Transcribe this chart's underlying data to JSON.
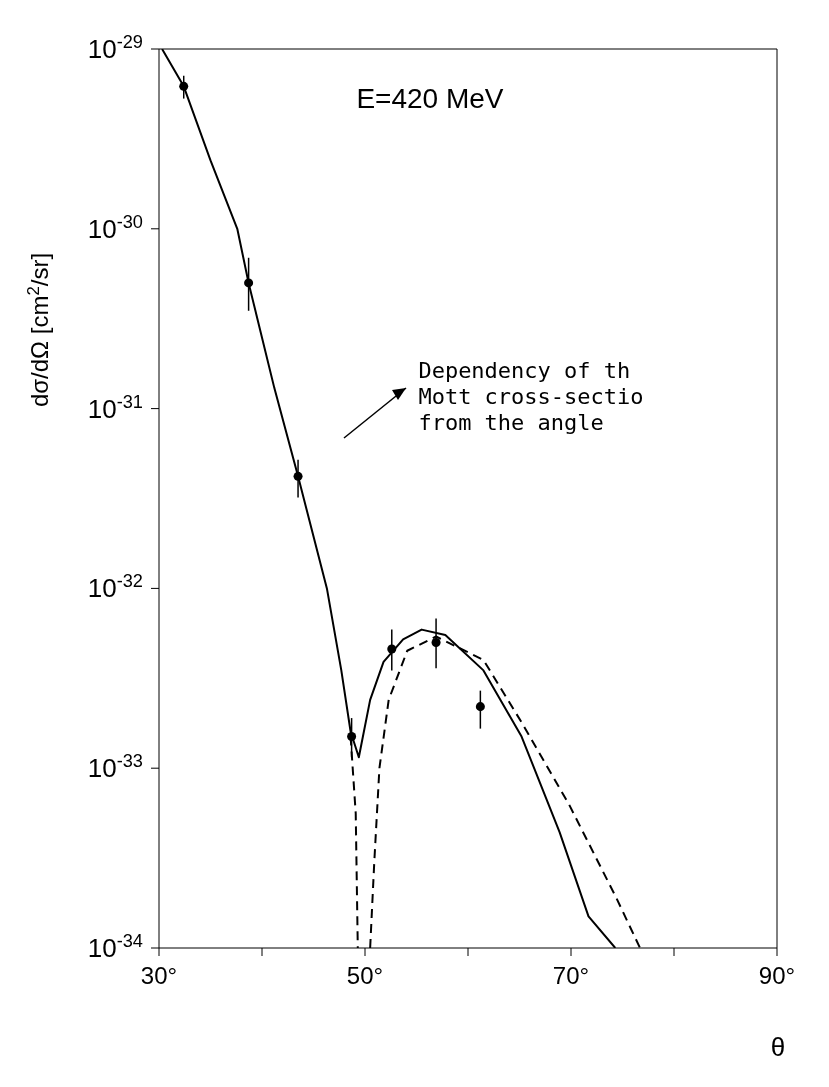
{
  "chart_data": {
    "type": "scatter",
    "log": "y",
    "xlabel": "θ",
    "ylabel": "dσ/dΩ [cm$^{2}$/sr]",
    "xlim": [
      30,
      90
    ],
    "xticks": [
      {
        "value": 30,
        "label": "30°"
      },
      {
        "value": 40,
        "label": null
      },
      {
        "value": 50,
        "label": "50°"
      },
      {
        "value": 60,
        "label": null
      },
      {
        "value": 70,
        "label": "70°"
      },
      {
        "value": 80,
        "label": null
      },
      {
        "value": 90,
        "label": "90°"
      }
    ],
    "ylim": [
      1e-34,
      1e-29
    ],
    "yticks": [
      {
        "value": 1e-34,
        "label": "10$^{-34}$"
      },
      {
        "value": 1e-33,
        "label": "10$^{-33}$"
      },
      {
        "value": 1e-32,
        "label": "10$^{-32}$"
      },
      {
        "value": 1e-31,
        "label": "10$^{-31}$"
      },
      {
        "value": 1e-30,
        "label": "10$^{-30}$"
      },
      {
        "value": 1e-29,
        "label": "10$^{-29}$"
      }
    ],
    "annotations": [
      "E=420 MeV",
      "Dependency of th\nMott cross-sectio\nfrom the angle"
    ],
    "series": [
      {
        "marker": "circle",
        "color": "#000000",
        "x": [
          32.4,
          38.7,
          43.5,
          48.7,
          52.6,
          56.9,
          61.2
        ],
        "values": [
          6.2e-30,
          5e-31,
          4.2e-32,
          1.5e-33,
          4.6e-33,
          5e-33,
          2.2e-33
        ],
        "errors": [
          [
            5.3e-30,
            7.1e-30
          ],
          [
            3.5e-31,
            6.9e-31
          ],
          [
            3.2e-32,
            5.2e-32
          ],
          [
            1.15e-33,
            1.9e-33
          ],
          [
            3.5e-33,
            5.9e-33
          ],
          [
            3.6e-33,
            6.8e-33
          ],
          [
            1.66e-33,
            2.7e-33
          ]
        ]
      },
      {
        "type": "line",
        "marker": "none",
        "line_style": "solid",
        "color": "#000000",
        "x": [
          30.3,
          32.4,
          35,
          37.6,
          38.7,
          41.2,
          43.5,
          46.3,
          47.7,
          48.6,
          49.4,
          50.5,
          51.8,
          53.7,
          55.5,
          57.8,
          61.5,
          65.2,
          68.9,
          71.7,
          74.3
        ],
        "values": [
          1e-29,
          6.2e-30,
          2.4e-30,
          1e-30,
          5e-31,
          1.3e-31,
          4.2e-32,
          1e-32,
          3.5e-33,
          1.6e-33,
          1.15e-33,
          2.4e-33,
          3.9e-33,
          5.2e-33,
          5.9e-33,
          5.5e-33,
          3.5e-33,
          1.5e-33,
          4.4e-34,
          1.5e-34,
          1e-34
        ]
      },
      {
        "type": "line",
        "marker": "none",
        "line_style": "dashed",
        "color": "#000000",
        "x": [
          48.6,
          49.1,
          49.3,
          49.9,
          50.5,
          50.9,
          51.4,
          52.3,
          54.1,
          56.9,
          61.5,
          65.2,
          69.8,
          74.4,
          76.7
        ],
        "values": [
          1.5e-33,
          5.6e-34,
          1e-34,
          null,
          1e-34,
          3e-34,
          1e-33,
          2.4e-33,
          4.5e-33,
          5.4e-33,
          4e-33,
          1.8e-33,
          6.3e-34,
          1.9e-34,
          1e-34
        ]
      }
    ]
  }
}
